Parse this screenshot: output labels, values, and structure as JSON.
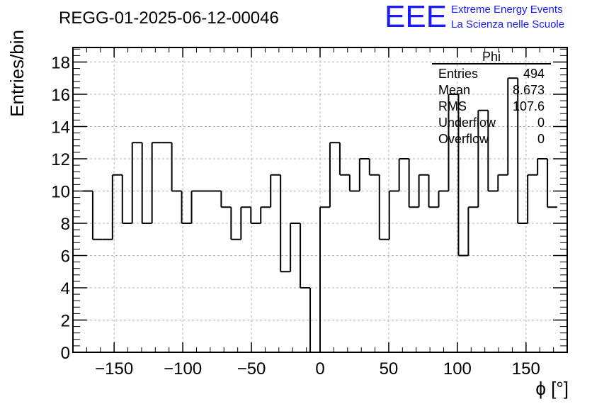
{
  "header": {
    "run_title": "REGG-01-2025-06-12-00046",
    "logo_text": "EEE",
    "logo_line1": "Extreme Energy Events",
    "logo_line2": "La Scienza nelle Scuole"
  },
  "stats_box": {
    "title": "Phi",
    "rows": [
      {
        "label": "Entries",
        "value": "494"
      },
      {
        "label": "Mean",
        "value": "8.673"
      },
      {
        "label": "RMS",
        "value": "107.6"
      },
      {
        "label": "Underflow",
        "value": "0"
      },
      {
        "label": "Overflow",
        "value": "0"
      }
    ]
  },
  "colors": {
    "logo": "#1a1aff",
    "line": "#000000",
    "grid": "#b0b0b0"
  },
  "chart_data": {
    "type": "histogram",
    "title": "REGG-01-2025-06-12-00046",
    "xlabel": "ϕ [°]",
    "ylabel": "Entries/bin",
    "xlim": [
      -180,
      180
    ],
    "ylim": [
      0,
      18.9
    ],
    "grid": true,
    "bin_width": 7.2,
    "x_ticks": [
      -150,
      -100,
      -50,
      0,
      50,
      100,
      150
    ],
    "x_tick_labels": [
      "−150",
      "−100",
      "−50",
      "0",
      "50",
      "100",
      "150"
    ],
    "y_ticks": [
      0,
      2,
      4,
      6,
      8,
      10,
      12,
      14,
      16,
      18
    ],
    "y_tick_labels": [
      "0",
      "2",
      "4",
      "6",
      "8",
      "10",
      "12",
      "14",
      "16",
      "18"
    ],
    "bin_edges_start": -172.8,
    "values": [
      10,
      7,
      7,
      11,
      8,
      13,
      8,
      13,
      13,
      10,
      8,
      10,
      10,
      10,
      9,
      7,
      9,
      8,
      9,
      11,
      5,
      8,
      4,
      0,
      9,
      13,
      11,
      10,
      12,
      11,
      7,
      10,
      12,
      9,
      11,
      9,
      10,
      16,
      6,
      9,
      15,
      10,
      11,
      17,
      8,
      11,
      12,
      9
    ]
  }
}
